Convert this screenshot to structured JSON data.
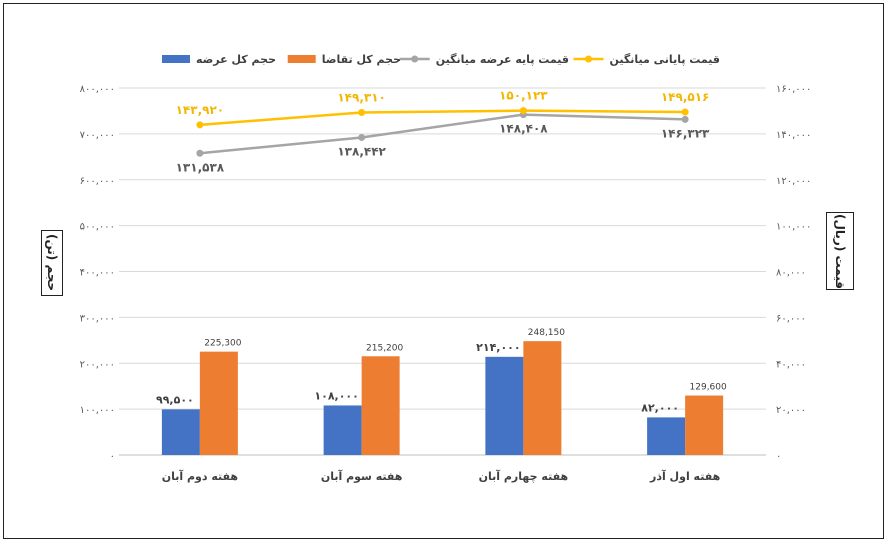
{
  "chart_data": {
    "type": "bar",
    "categories": [
      "هفته دوم آبان",
      "هفته سوم آبان",
      "هفته چهارم آبان",
      "هفته اول آذر"
    ],
    "series": [
      {
        "name": "حجم کل عرضه",
        "kind": "bar",
        "axis": "left",
        "color": "#4472c4",
        "values": [
          99500,
          108000,
          214000,
          82000
        ],
        "labels": [
          "۹۹,۵۰۰",
          "۱۰۸,۰۰۰",
          "۲۱۴,۰۰۰",
          "۸۲,۰۰۰"
        ]
      },
      {
        "name": "حجم کل تقاضا",
        "kind": "bar",
        "axis": "left",
        "color": "#ed7d31",
        "values": [
          225300,
          215200,
          248150,
          129600
        ],
        "labels": [
          "225,300",
          "215,200",
          "248,150",
          "129,600"
        ]
      },
      {
        "name": "قیمت پایه عرضه میانگین",
        "kind": "line",
        "axis": "right",
        "color": "#a5a5a5",
        "values": [
          131538,
          138442,
          148408,
          146323
        ],
        "labels": [
          "۱۳۱,۵۳۸",
          "۱۳۸,۴۴۲",
          "۱۴۸,۴۰۸",
          "۱۴۶,۳۲۳"
        ]
      },
      {
        "name": "قیمت پایانی میانگین",
        "kind": "line",
        "axis": "right",
        "color": "#ffc000",
        "values": [
          143920,
          149310,
          150123,
          149516
        ],
        "labels": [
          "۱۴۳,۹۲۰",
          "۱۴۹,۳۱۰",
          "۱۵۰,۱۲۳",
          "۱۴۹,۵۱۶"
        ]
      }
    ],
    "y_left": {
      "title": "حجم (تن)",
      "range": [
        0,
        800000
      ],
      "ticks": [
        0,
        100000,
        200000,
        300000,
        400000,
        500000,
        600000,
        700000,
        800000
      ],
      "tick_labels": [
        "۰",
        "۱۰۰,۰۰۰",
        "۲۰۰,۰۰۰",
        "۳۰۰,۰۰۰",
        "۴۰۰,۰۰۰",
        "۵۰۰,۰۰۰",
        "۶۰۰,۰۰۰",
        "۷۰۰,۰۰۰",
        "۸۰۰,۰۰۰"
      ]
    },
    "y_right": {
      "title": "قیمت (ریال)",
      "range": [
        0,
        160000
      ],
      "ticks": [
        0,
        20000,
        40000,
        60000,
        80000,
        100000,
        120000,
        140000,
        160000
      ],
      "tick_labels": [
        "۰",
        "۲۰,۰۰۰",
        "۴۰,۰۰۰",
        "۶۰,۰۰۰",
        "۸۰,۰۰۰",
        "۱۰۰,۰۰۰",
        "۱۲۰,۰۰۰",
        "۱۴۰,۰۰۰",
        "۱۶۰,۰۰۰"
      ]
    },
    "legend_position": "top",
    "grid": true
  }
}
